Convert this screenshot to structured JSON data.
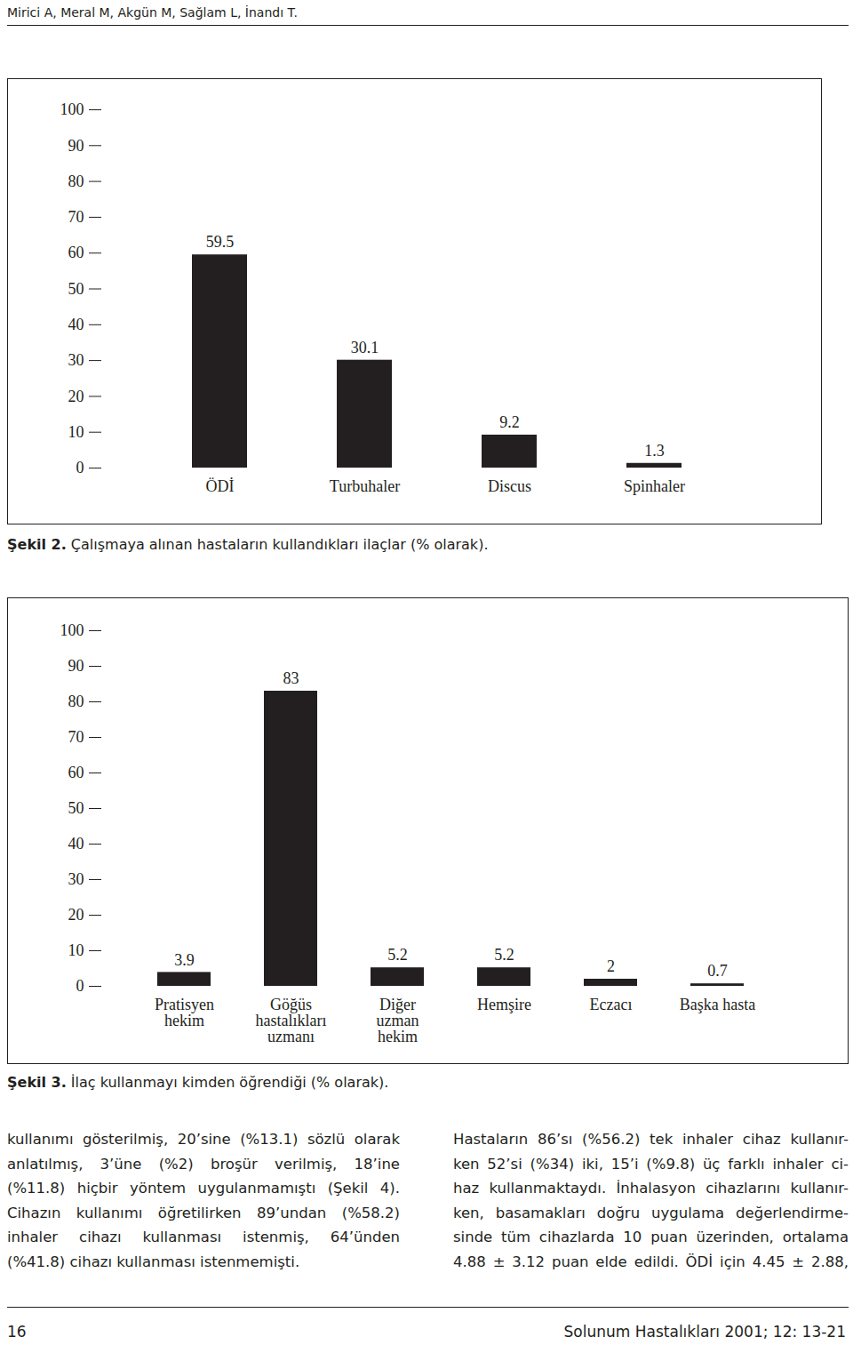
{
  "header": {
    "authors": "Mirici A, Meral M, Akgün M, Sağlam L, İnandı T."
  },
  "chart_data": [
    {
      "type": "bar",
      "title": "Şekil 2. Çalışmaya alınan hastaların kullandıkları ilaçlar (% olarak).",
      "categories": [
        "ÖDİ",
        "Turbuhaler",
        "Discus",
        "Spinhaler"
      ],
      "values": [
        59.5,
        30.1,
        9.2,
        1.3
      ],
      "color": "#231f20",
      "ylim": [
        0,
        100
      ],
      "yticks": [
        0,
        10,
        20,
        30,
        40,
        50,
        60,
        70,
        80,
        90,
        100
      ],
      "grid": false,
      "data_labels": true
    },
    {
      "type": "bar",
      "title": "Şekil 3. İlaç kullanmayı kimden öğrendiği (% olarak).",
      "categories": [
        "Pratisyen\nhekim",
        "Göğüs\nhastalıkları\nuzmanı",
        "Diğer\nuzman\nhekim",
        "Hemşire",
        "Eczacı",
        "Başka hasta"
      ],
      "values": [
        3.9,
        83,
        5.2,
        5.2,
        2,
        0.7
      ],
      "color": "#231f20",
      "ylim": [
        0,
        100
      ],
      "yticks": [
        0,
        10,
        20,
        30,
        40,
        50,
        60,
        70,
        80,
        90,
        100
      ],
      "grid": false,
      "data_labels": true
    }
  ],
  "body": {
    "columns": [
      [
        "kullanımı gösterilmiş, 20’sine (%13.1) sözlü olarak",
        "anlatılmış, 3’üne (%2) broşür verilmiş, 18’ine",
        "(%11.8) hiçbir yöntem uygulanmamıştı (Şekil 4).",
        "Cihazın kullanımı öğretilirken 89’undan (%58.2)",
        "inhaler cihazı kullanması istenmiş, 64’ünden",
        "(%41.8) cihazı kullanması istenmemişti."
      ],
      [
        "Hastaların 86’sı (%56.2) tek inhaler cihaz kullanır-",
        "ken 52’si (%34) iki, 15’i (%9.8) üç farklı inhaler ci-",
        "haz kullanmaktaydı. İnhalasyon cihazlarını kullanır-",
        "ken, basamakları doğru uygulama değerlendirme-",
        "sinde tüm cihazlarda 10 puan üzerinden, ortalama",
        "4.88 ± 3.12 puan elde edildi. ÖDİ için 4.45 ± 2.88,"
      ]
    ]
  },
  "footer": {
    "page": "16",
    "journal": "Solunum Hastalıkları 2001; 12: 13-21"
  }
}
